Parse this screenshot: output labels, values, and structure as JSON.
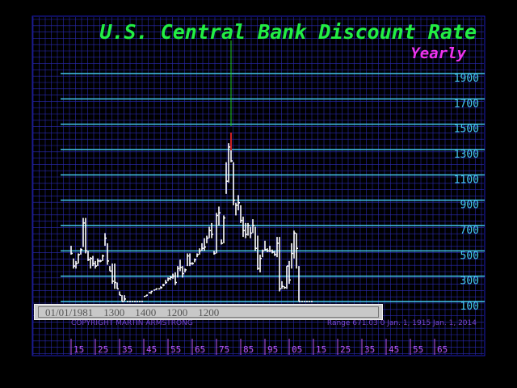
{
  "chart_data": {
    "type": "line",
    "title": "U.S. Central Bank Discount Rate",
    "subtitle": "Yearly",
    "colors": {
      "background": "#000000",
      "frame": "#1d1db8",
      "grid": "#2a2ab0",
      "level_lines": "#44c8ee",
      "title": "#22ee44",
      "subtitle": "#ee33ee",
      "series": "#ffffff",
      "tick_labels": "#44c8ee",
      "year_labels": "#bb55ee",
      "footer": "#7744cc"
    },
    "y_levels": [
      1900,
      1700,
      1500,
      1300,
      1100,
      900,
      700,
      500,
      300,
      100
    ],
    "x_tick_labels": [
      "15",
      "25",
      "35",
      "45",
      "55",
      "65",
      "75",
      "85",
      "95",
      "05",
      "15",
      "25",
      "35",
      "45",
      "55",
      "65"
    ],
    "ylim": [
      0,
      2000
    ],
    "xlim": [
      1912,
      2078
    ],
    "grid": true,
    "series": [
      {
        "x": [
          1915,
          1916,
          1917,
          1918,
          1919,
          1920,
          1921,
          1922,
          1923,
          1924,
          1925,
          1926,
          1927,
          1928,
          1929,
          1930,
          1931,
          1932,
          1933,
          1934,
          1935,
          1936,
          1937,
          1938,
          1939,
          1940,
          1941,
          1942,
          1943,
          1944,
          1945,
          1946,
          1947,
          1948,
          1949,
          1950,
          1951,
          1952,
          1953,
          1954,
          1955,
          1956,
          1957,
          1958,
          1959,
          1960,
          1961,
          1962,
          1963,
          1964,
          1965,
          1966,
          1967,
          1968,
          1969,
          1970,
          1971,
          1972,
          1973,
          1974,
          1975,
          1976,
          1977,
          1978,
          1979,
          1980,
          1981,
          1982,
          1983,
          1984,
          1985,
          1986,
          1987,
          1988,
          1989,
          1990,
          1991,
          1992,
          1993,
          1994,
          1995,
          1996,
          1997,
          1998,
          1999,
          2000,
          2001,
          2002,
          2003,
          2004,
          2005,
          2006,
          2007,
          2008,
          2009,
          2010,
          2011,
          2012,
          2013,
          2014
        ],
        "high": [
          540,
          440,
          420,
          480,
          520,
          760,
          760,
          500,
          450,
          460,
          420,
          440,
          430,
          470,
          640,
          560,
          380,
          400,
          400,
          250,
          180,
          150,
          150,
          100,
          100,
          100,
          100,
          100,
          100,
          100,
          100,
          150,
          150,
          180,
          180,
          200,
          200,
          220,
          240,
          270,
          290,
          300,
          320,
          330,
          380,
          430,
          380,
          360,
          480,
          480,
          410,
          440,
          480,
          520,
          560,
          600,
          620,
          690,
          720,
          500,
          800,
          850,
          590,
          780,
          1200,
          1350,
          1300,
          1200,
          880,
          940,
          860,
          770,
          720,
          720,
          690,
          750,
          690,
          620,
          470,
          510,
          580,
          520,
          540,
          510,
          500,
          610,
          610,
          260,
          220,
          380,
          420,
          560,
          660,
          640,
          380,
          100,
          100,
          100,
          100,
          100
        ],
        "low": [
          470,
          360,
          360,
          400,
          470,
          530,
          480,
          420,
          360,
          380,
          360,
          380,
          410,
          420,
          540,
          390,
          340,
          240,
          200,
          200,
          150,
          100,
          100,
          100,
          100,
          100,
          100,
          100,
          100,
          100,
          100,
          140,
          150,
          160,
          180,
          190,
          200,
          200,
          220,
          240,
          260,
          270,
          280,
          230,
          290,
          340,
          290,
          330,
          380,
          380,
          390,
          410,
          450,
          470,
          500,
          500,
          560,
          600,
          600,
          470,
          480,
          700,
          550,
          560,
          950,
          1040,
          1200,
          860,
          780,
          820,
          720,
          610,
          600,
          620,
          600,
          640,
          500,
          350,
          330,
          450,
          500,
          490,
          490,
          480,
          460,
          450,
          180,
          200,
          200,
          200,
          240,
          360,
          440,
          360,
          100,
          100,
          100,
          100,
          100,
          100
        ],
        "close": [
          480,
          380,
          400,
          470,
          510,
          720,
          500,
          430,
          440,
          400,
          380,
          420,
          420,
          460,
          600,
          420,
          340,
          260,
          250,
          200,
          150,
          100,
          120,
          100,
          100,
          100,
          100,
          100,
          100,
          100,
          140,
          150,
          170,
          180,
          190,
          200,
          200,
          210,
          230,
          250,
          280,
          290,
          300,
          250,
          360,
          370,
          320,
          350,
          460,
          400,
          400,
          430,
          470,
          500,
          520,
          530,
          600,
          660,
          630,
          480,
          780,
          800,
          560,
          760,
          1050,
          1320,
          1210,
          900,
          860,
          880,
          740,
          660,
          630,
          700,
          640,
          700,
          520,
          360,
          440,
          500,
          510,
          500,
          500,
          490,
          470,
          560,
          200,
          220,
          210,
          380,
          270,
          480,
          640,
          520,
          100,
          100,
          100,
          100,
          100,
          100
        ]
      }
    ]
  },
  "data_box": {
    "values": [
      "01/01/1981",
      "1300",
      "1400",
      "1200",
      "1200"
    ]
  },
  "footer": {
    "copyright": "COPYRIGHT MARTIN ARMSTRONG",
    "range": "Range  671.03  0 Jan.  1, 1915 Jan.  1,  2014"
  }
}
